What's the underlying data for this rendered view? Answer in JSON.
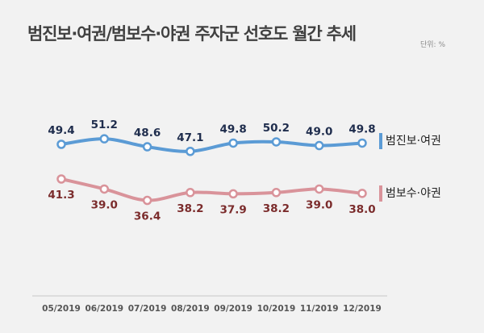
{
  "chart_data": {
    "type": "line",
    "title": "범진보·여권/범보수·야권 주자군 선호도 월간 추세",
    "unit": "단위: %",
    "categories": [
      "05/2019",
      "06/2019",
      "07/2019",
      "08/2019",
      "09/2019",
      "10/2019",
      "11/2019",
      "12/2019"
    ],
    "series": [
      {
        "name": "범진보·여권",
        "values": [
          49.4,
          51.2,
          48.6,
          47.1,
          49.8,
          50.2,
          49.0,
          49.8
        ],
        "color": "#5b9bd5",
        "label_color": "#1f2d4d",
        "label_position": "above"
      },
      {
        "name": "범보수·야권",
        "values": [
          41.3,
          39.0,
          36.4,
          38.2,
          37.9,
          38.2,
          39.0,
          38.0
        ],
        "color": "#d9939a",
        "label_color": "#7b2c2c",
        "label_position": "below"
      }
    ],
    "grid": false,
    "legend": "right"
  }
}
